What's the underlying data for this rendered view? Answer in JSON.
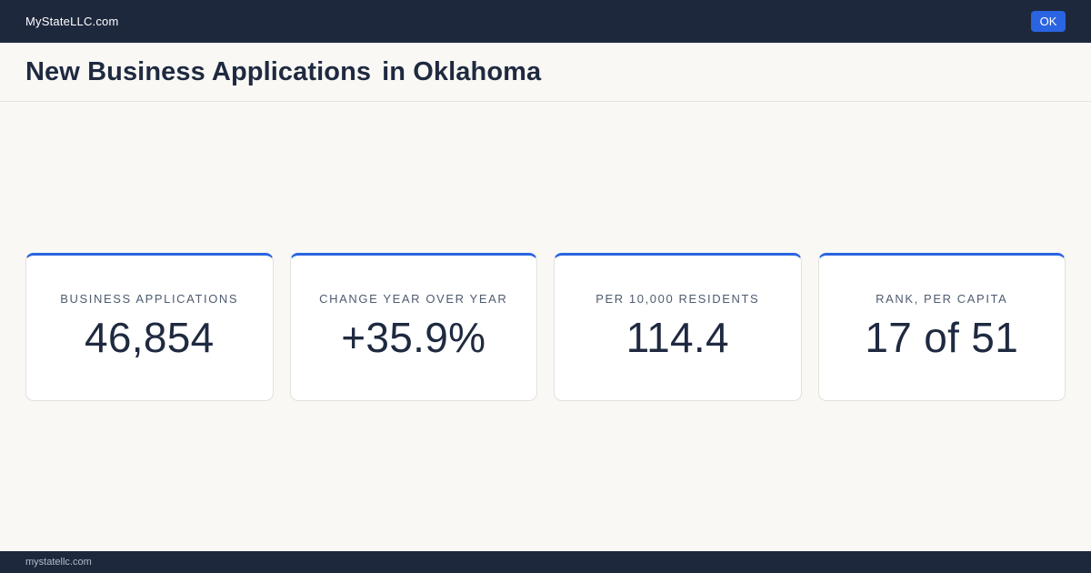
{
  "header": {
    "brand": "MyStateLLC.com",
    "ok_label": "OK"
  },
  "page": {
    "title_part1": "New Business Applications",
    "title_part2": "in Oklahoma"
  },
  "stats": [
    {
      "label": "BUSINESS APPLICATIONS",
      "value": "46,854"
    },
    {
      "label": "CHANGE YEAR OVER YEAR",
      "value": "+35.9%"
    },
    {
      "label": "PER 10,000 RESIDENTS",
      "value": "114.4"
    },
    {
      "label": "RANK, PER CAPITA",
      "value": "17 of 51"
    }
  ],
  "footer": {
    "text": "mystatellc.com"
  },
  "colors": {
    "nav_bg": "#1e283d",
    "accent": "#2a64e0",
    "page_bg": "#f9f8f5",
    "text": "#1f2a40"
  }
}
